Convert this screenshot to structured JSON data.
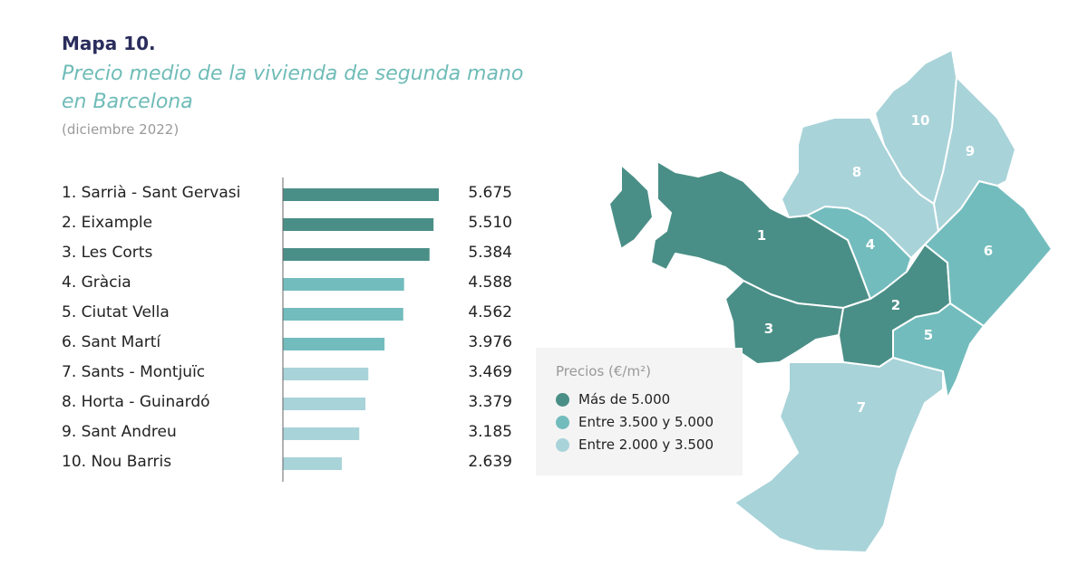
{
  "header": {
    "label": "Mapa 10.",
    "title": "Precio medio de la vivienda de segunda mano en Barcelona",
    "subtitle": "(diciembre 2022)"
  },
  "colors": {
    "high": "#4a8f87",
    "mid": "#73bcbd",
    "low": "#a8d3d9"
  },
  "chart_data": {
    "type": "bar",
    "orientation": "horizontal",
    "categories": [
      "1. Sarrià - Sant Gervasi",
      "2. Eixample",
      "3. Les Corts",
      "4. Gràcia",
      "5. Ciutat Vella",
      "6. Sant Martí",
      "7. Sants - Montjuïc",
      "8. Horta - Guinardó",
      "9. Sant Andreu",
      "10. Nou Barris"
    ],
    "values": [
      5675,
      5510,
      5384,
      4588,
      4562,
      3976,
      3469,
      3379,
      3185,
      2639
    ],
    "value_labels": [
      "5.675",
      "5.510",
      "5.384",
      "4.588",
      "4.562",
      "3.976",
      "3.469",
      "3.379",
      "3.185",
      "2.639"
    ],
    "classes": [
      "high",
      "high",
      "high",
      "mid",
      "mid",
      "mid",
      "low",
      "low",
      "low",
      "low"
    ]
  },
  "legend": {
    "title": "Precios (€/m²)",
    "items": [
      {
        "label": "Más de 5.000",
        "class": "high"
      },
      {
        "label": "Entre 3.500 y 5.000",
        "class": "mid"
      },
      {
        "label": "Entre 2.000 y 3.500",
        "class": "low"
      }
    ]
  },
  "map": {
    "districts": [
      {
        "number": "1",
        "class": "high"
      },
      {
        "number": "2",
        "class": "high"
      },
      {
        "number": "3",
        "class": "high"
      },
      {
        "number": "4",
        "class": "mid"
      },
      {
        "number": "5",
        "class": "mid"
      },
      {
        "number": "6",
        "class": "mid"
      },
      {
        "number": "7",
        "class": "low"
      },
      {
        "number": "8",
        "class": "low"
      },
      {
        "number": "9",
        "class": "low"
      },
      {
        "number": "10",
        "class": "low"
      }
    ]
  }
}
